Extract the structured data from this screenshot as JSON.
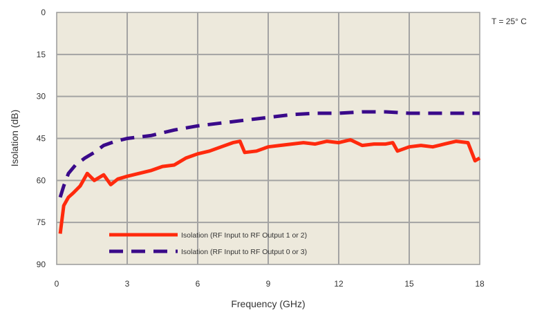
{
  "chart_data": {
    "type": "line",
    "xlabel": "Frequency (GHz)",
    "ylabel": "Isolation (dB)",
    "xlim": [
      0,
      18
    ],
    "ylim": [
      0,
      90
    ],
    "y_inverted": true,
    "grid": true,
    "legend_placement": "bottom-center",
    "annotation": "T = 25° C",
    "x_ticks": [
      "0",
      "3",
      "6",
      "9",
      "12",
      "15",
      "18"
    ],
    "y_ticks": [
      "0",
      "15",
      "30",
      "45",
      "60",
      "75",
      "90"
    ],
    "series": [
      {
        "name": "Isolation (RF Input to RF Output 1 or 2)",
        "color": "#ff2a0d",
        "dash": "solid",
        "x": [
          0.15,
          0.3,
          0.5,
          0.7,
          1.0,
          1.3,
          1.6,
          2.0,
          2.3,
          2.6,
          3.0,
          3.5,
          4.0,
          4.5,
          5.0,
          5.5,
          6.0,
          6.5,
          7.0,
          7.5,
          7.8,
          8.0,
          8.5,
          9.0,
          9.5,
          10.0,
          10.5,
          11.0,
          11.5,
          12.0,
          12.5,
          13.0,
          13.5,
          14.0,
          14.3,
          14.5,
          15.0,
          15.5,
          16.0,
          16.5,
          17.0,
          17.5,
          17.8,
          18.0
        ],
        "y": [
          79,
          69,
          66,
          64.5,
          62,
          57.5,
          60,
          58,
          61.5,
          59.5,
          58.5,
          57.5,
          56.5,
          55,
          54.5,
          52,
          50.5,
          49.5,
          48,
          46.5,
          46,
          50,
          49.5,
          48,
          47.5,
          47,
          46.5,
          47,
          46,
          46.5,
          45.5,
          47.5,
          47,
          47,
          46.5,
          49.5,
          48,
          47.5,
          48,
          47,
          46,
          46.5,
          53,
          52
        ]
      },
      {
        "name": "Isolation (RF Input to RF Output 0 or 3)",
        "color": "#3a0a8a",
        "dash": "dashed",
        "x": [
          0.15,
          0.3,
          0.5,
          0.8,
          1.2,
          1.6,
          2.0,
          2.5,
          3.0,
          4.0,
          5.0,
          6.0,
          7.0,
          8.0,
          9.0,
          10.0,
          11.0,
          12.0,
          13.0,
          14.0,
          15.0,
          16.0,
          17.0,
          18.0
        ],
        "y": [
          66,
          62,
          57.5,
          54.5,
          52,
          50,
          47.5,
          46,
          45,
          44,
          42,
          40.5,
          39.5,
          38.5,
          37.5,
          36.5,
          36,
          36,
          35.5,
          35.5,
          36,
          36,
          36,
          36
        ]
      }
    ]
  }
}
